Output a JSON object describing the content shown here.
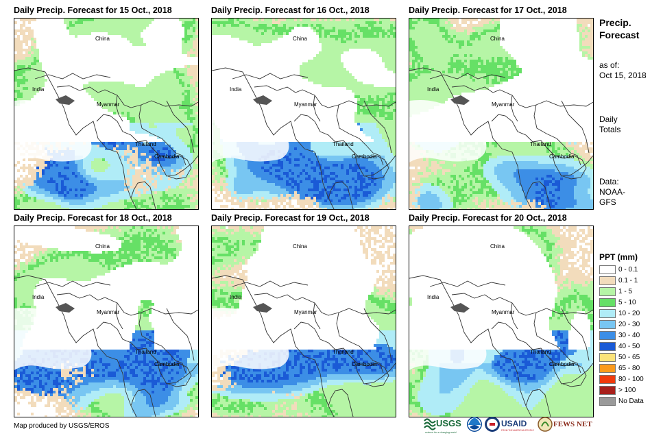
{
  "panels": [
    {
      "title": "Daily Precip. Forecast for 15 Oct., 2018",
      "seed": 15
    },
    {
      "title": "Daily Precip. Forecast for 16 Oct., 2018",
      "seed": 16
    },
    {
      "title": "Daily Precip. Forecast for 17 Oct., 2018",
      "seed": 17
    },
    {
      "title": "Daily Precip. Forecast for 18 Oct., 2018",
      "seed": 18
    },
    {
      "title": "Daily Precip. Forecast for 19 Oct., 2018",
      "seed": 19
    },
    {
      "title": "Daily Precip. Forecast for 20 Oct., 2018",
      "seed": 20
    }
  ],
  "country_labels": {
    "china": "China",
    "india": "India",
    "myanmar": "Myanmar",
    "thailand": "Thailand",
    "cambodia": "Cambodia"
  },
  "sidebar": {
    "title_line1": "Precip.",
    "title_line2": "Forecast",
    "asof_line1": "as of:",
    "asof_line2": "Oct 15, 2018",
    "totals_line1": "Daily",
    "totals_line2": "Totals",
    "data_line1": "Data:",
    "data_line2": "NOAA-",
    "data_line3": "GFS"
  },
  "legend": {
    "title": "PPT (mm)",
    "items": [
      {
        "label": "0 - 0.1",
        "color": "#ffffff"
      },
      {
        "label": "0.1 - 1",
        "color": "#f2dcbc"
      },
      {
        "label": "1 - 5",
        "color": "#b6f5a6"
      },
      {
        "label": "5 - 10",
        "color": "#66e066"
      },
      {
        "label": "10 - 20",
        "color": "#b0ecf7"
      },
      {
        "label": "20 - 30",
        "color": "#78c6f2"
      },
      {
        "label": "30 - 40",
        "color": "#3c8ee6"
      },
      {
        "label": "40 - 50",
        "color": "#1a5ad6"
      },
      {
        "label": "50 - 65",
        "color": "#fbe37a"
      },
      {
        "label": "65 - 80",
        "color": "#fb9a1c"
      },
      {
        "label": "80 - 100",
        "color": "#f03a0c"
      },
      {
        "label": "> 100",
        "color": "#a8201c"
      },
      {
        "label": "No Data",
        "color": "#9a9a9a"
      }
    ]
  },
  "credit": "Map produced by USGS/EROS",
  "logos": {
    "usgs": "USGS",
    "usgs_tagline": "science for a changing world",
    "usaid": "USAID",
    "usaid_tagline": "FROM THE AMERICAN PEOPLE",
    "fewsnet": "FEWS NET"
  }
}
